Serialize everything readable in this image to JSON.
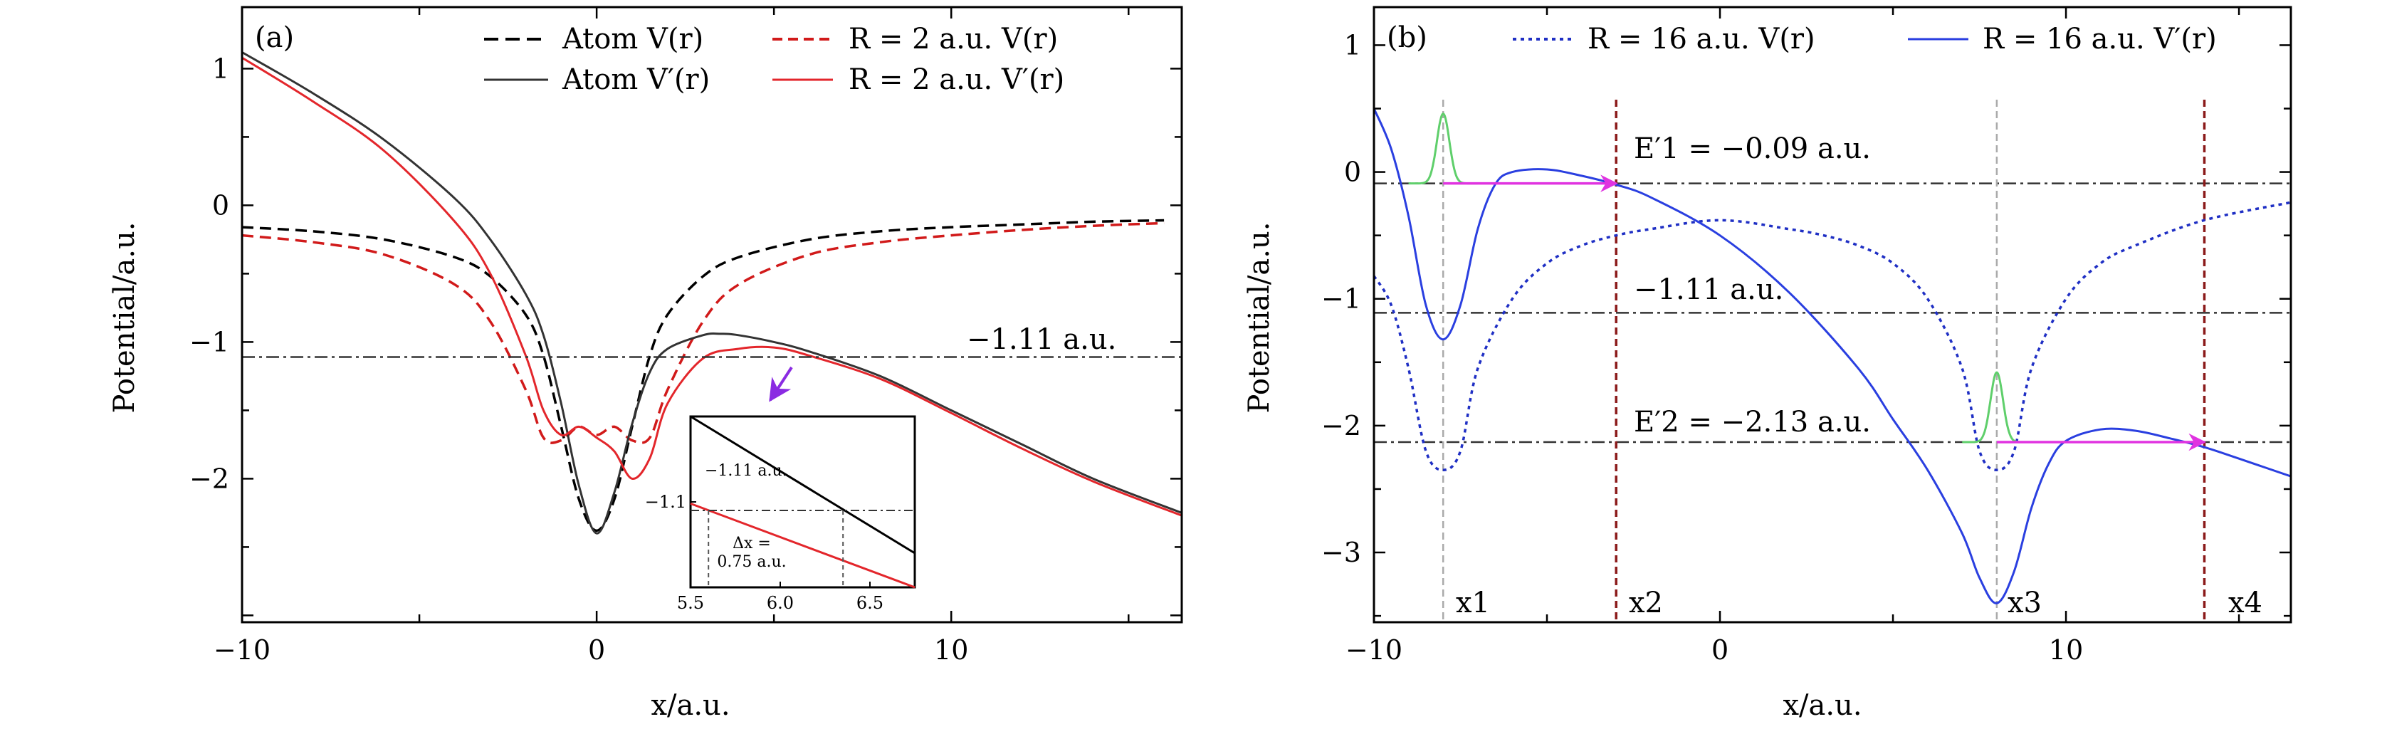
{
  "chart_data": [
    {
      "panel": "(a)",
      "type": "line",
      "xlabel": "x/a.u.",
      "ylabel": "Potential/a.u.",
      "xlim": [
        -10,
        16.5
      ],
      "ylim": [
        -3.05,
        1.45
      ],
      "xticks": [
        -10,
        0,
        10
      ],
      "yticks": [
        1,
        0,
        -1,
        -2
      ],
      "xtick_labels": [
        "−10",
        "0",
        "10"
      ],
      "ytick_labels": [
        "1",
        "0",
        "−1",
        "−2"
      ],
      "legend": [
        {
          "name": "Atom V(r)",
          "color": "#000000",
          "style": "dashed"
        },
        {
          "name": "R = 2 a.u. V(r)",
          "color": "#d11a1a",
          "style": "dashed"
        },
        {
          "name": "Atom V′(r)",
          "color": "#333333",
          "style": "solid"
        },
        {
          "name": "R = 2 a.u. V′(r)",
          "color": "#e3262b",
          "style": "solid"
        }
      ],
      "legend_labels": {
        "atom_v": "Atom V(r)",
        "r2_v": "R = 2 a.u. V(r)",
        "atom_vp": "Atom V′(r)",
        "r2_vp": "R = 2 a.u. V′(r)"
      },
      "hline": {
        "y": -1.11,
        "label": "−1.11 a.u.",
        "color": "#333333",
        "style": "dashdot"
      },
      "series": [
        {
          "name": "Atom V(r)",
          "color": "#000000",
          "style": "dashed",
          "x": [
            -10,
            -8,
            -6,
            -4,
            -3,
            -2,
            -1.5,
            -1,
            -0.5,
            0,
            0.5,
            1,
            1.5,
            2,
            3,
            4,
            6,
            8,
            10,
            12,
            14,
            16
          ],
          "y": [
            -0.16,
            -0.19,
            -0.25,
            -0.38,
            -0.52,
            -0.8,
            -1.1,
            -1.62,
            -2.15,
            -2.38,
            -2.15,
            -1.62,
            -1.1,
            -0.8,
            -0.52,
            -0.38,
            -0.25,
            -0.19,
            -0.16,
            -0.14,
            -0.12,
            -0.11
          ]
        },
        {
          "name": "R = 2 a.u. V(r)",
          "color": "#d11a1a",
          "style": "dashed",
          "x": [
            -10,
            -8,
            -6,
            -4,
            -3,
            -2,
            -1.5,
            -1,
            -0.5,
            0,
            0.5,
            1,
            1.5,
            2,
            3,
            4,
            6,
            8,
            10,
            12,
            14,
            16
          ],
          "y": [
            -0.22,
            -0.27,
            -0.36,
            -0.58,
            -0.85,
            -1.35,
            -1.7,
            -1.72,
            -1.62,
            -1.68,
            -1.62,
            -1.72,
            -1.7,
            -1.35,
            -0.85,
            -0.58,
            -0.36,
            -0.27,
            -0.22,
            -0.18,
            -0.15,
            -0.13
          ]
        },
        {
          "name": "Atom V′(r)",
          "color": "#333333",
          "style": "solid",
          "x": [
            -10,
            -8,
            -6,
            -4,
            -3,
            -2,
            -1.5,
            -1,
            -0.5,
            0,
            0.5,
            1,
            1.5,
            2,
            3,
            3.5,
            4,
            5,
            6,
            8,
            10,
            12,
            14,
            16.5
          ],
          "y": [
            1.12,
            0.82,
            0.48,
            0.05,
            -0.25,
            -0.65,
            -0.95,
            -1.45,
            -2.05,
            -2.4,
            -2.1,
            -1.6,
            -1.22,
            -1.05,
            -0.95,
            -0.94,
            -0.95,
            -1.0,
            -1.07,
            -1.25,
            -1.5,
            -1.75,
            -2.0,
            -2.25
          ]
        },
        {
          "name": "R = 2 a.u. V′(r)",
          "color": "#e3262b",
          "style": "solid",
          "x": [
            -10,
            -8,
            -6,
            -4,
            -3,
            -2,
            -1.5,
            -1,
            -0.5,
            0,
            0.5,
            1,
            1.5,
            2,
            3,
            4,
            5,
            6,
            8,
            10,
            12,
            14,
            16.5
          ],
          "y": [
            1.08,
            0.76,
            0.4,
            -0.12,
            -0.5,
            -1.1,
            -1.5,
            -1.68,
            -1.62,
            -1.7,
            -1.8,
            -2.0,
            -1.85,
            -1.45,
            -1.12,
            -1.05,
            -1.04,
            -1.1,
            -1.27,
            -1.52,
            -1.78,
            -2.02,
            -2.27
          ]
        }
      ],
      "inset": {
        "xlim": [
          5.5,
          6.75
        ],
        "ylim": [
          -1.2,
          -1.0
        ],
        "xticks": [
          5.5,
          6.0,
          6.5
        ],
        "xtick_labels": [
          "5.5",
          "6.0",
          "6.5"
        ],
        "yticks": [
          -1.1
        ],
        "ytick_labels": [
          "−1.1"
        ],
        "hline_label": "−1.11 a.u.",
        "dx_label_1": "Δx =",
        "dx_label_2": "0.75 a.u.",
        "dx_bounds": [
          5.6,
          6.35
        ],
        "lines": [
          {
            "name": "Atom V′(r)",
            "color": "#000000",
            "x": [
              5.5,
              6.75
            ],
            "y": [
              -1.0,
              -1.16
            ]
          },
          {
            "name": "R = 2 a.u. V′(r)",
            "color": "#e3262b",
            "x": [
              5.5,
              6.75
            ],
            "y": [
              -1.102,
              -1.2
            ]
          }
        ]
      }
    },
    {
      "panel": "(b)",
      "type": "line",
      "xlabel": "x/a.u.",
      "ylabel": "Potential/a.u.",
      "xlim": [
        -10,
        16.5
      ],
      "ylim": [
        -3.55,
        1.3
      ],
      "xticks": [
        -10,
        0,
        10
      ],
      "yticks": [
        1,
        0,
        -1,
        -2,
        -3
      ],
      "xtick_labels": [
        "−10",
        "0",
        "10"
      ],
      "ytick_labels": [
        "1",
        "0",
        "−1",
        "−2",
        "−3"
      ],
      "legend": [
        {
          "name": "R = 16 a.u. V(r)",
          "color": "#1f2fc4",
          "style": "dotted"
        },
        {
          "name": "R = 16 a.u. V′(r)",
          "color": "#2a3fe0",
          "style": "solid"
        }
      ],
      "legend_labels": {
        "r16_v": "R = 16 a.u. V(r)",
        "r16_vp": "R = 16 a.u. V′(r)"
      },
      "levels": [
        {
          "y": -0.09,
          "label": "E′1 = −0.09 a.u."
        },
        {
          "y": -1.11,
          "label": "−1.11 a.u."
        },
        {
          "y": -2.13,
          "label": "E′2 = −2.13 a.u."
        }
      ],
      "vlines": [
        {
          "x": -8,
          "label": "x1",
          "color": "#aaaaaa",
          "style": "dashed"
        },
        {
          "x": -3,
          "label": "x2",
          "color": "#8b1a1a",
          "style": "dashed"
        },
        {
          "x": 8,
          "label": "x3",
          "color": "#aaaaaa",
          "style": "dashed"
        },
        {
          "x": 14,
          "label": "x4",
          "color": "#8b1a1a",
          "style": "dashed"
        }
      ],
      "series": [
        {
          "name": "R = 16 a.u. V(r)",
          "color": "#1f2fc4",
          "style": "dotted",
          "x": [
            -10,
            -9.5,
            -9,
            -8.5,
            -8,
            -7.5,
            -7,
            -6,
            -5,
            -4,
            -3,
            -2,
            0,
            2,
            3,
            4,
            5,
            6,
            7,
            7.5,
            8,
            8.5,
            9,
            10,
            11,
            12,
            14,
            16.5
          ],
          "y": [
            -0.82,
            -1.05,
            -1.55,
            -2.2,
            -2.35,
            -2.2,
            -1.55,
            -1.0,
            -0.72,
            -0.58,
            -0.5,
            -0.45,
            -0.38,
            -0.45,
            -0.5,
            -0.58,
            -0.72,
            -1.0,
            -1.55,
            -2.2,
            -2.35,
            -2.2,
            -1.55,
            -1.0,
            -0.72,
            -0.58,
            -0.38,
            -0.24
          ]
        },
        {
          "name": "R = 16 a.u. V′(r)",
          "color": "#2a3fe0",
          "style": "solid",
          "x": [
            -10,
            -9.5,
            -9,
            -8.5,
            -8,
            -7.5,
            -7,
            -6.5,
            -6,
            -5,
            -4,
            -3,
            -2,
            0,
            2,
            4,
            5,
            6,
            7,
            7.5,
            8,
            8.5,
            9,
            9.5,
            10,
            11,
            12,
            13,
            14,
            15,
            16.5
          ],
          "y": [
            0.5,
            0.18,
            -0.35,
            -1.05,
            -1.32,
            -1.05,
            -0.45,
            -0.1,
            0.0,
            0.02,
            -0.03,
            -0.1,
            -0.2,
            -0.5,
            -0.95,
            -1.55,
            -1.95,
            -2.35,
            -2.85,
            -3.2,
            -3.4,
            -3.15,
            -2.65,
            -2.3,
            -2.12,
            -2.03,
            -2.04,
            -2.1,
            -2.17,
            -2.26,
            -2.4
          ]
        }
      ],
      "wavepackets": [
        {
          "x0": -8,
          "base": -0.09,
          "height": 0.55,
          "color": "#5fcf6b"
        },
        {
          "x0": 8,
          "base": -2.13,
          "height": 0.55,
          "color": "#5fcf6b"
        }
      ],
      "tunnel_arrows": [
        {
          "x_from": -8,
          "x_to": -3,
          "y": -0.09,
          "color": "#e033e0"
        },
        {
          "x_from": 8,
          "x_to": 14,
          "y": -2.13,
          "color": "#e033e0"
        }
      ]
    }
  ]
}
